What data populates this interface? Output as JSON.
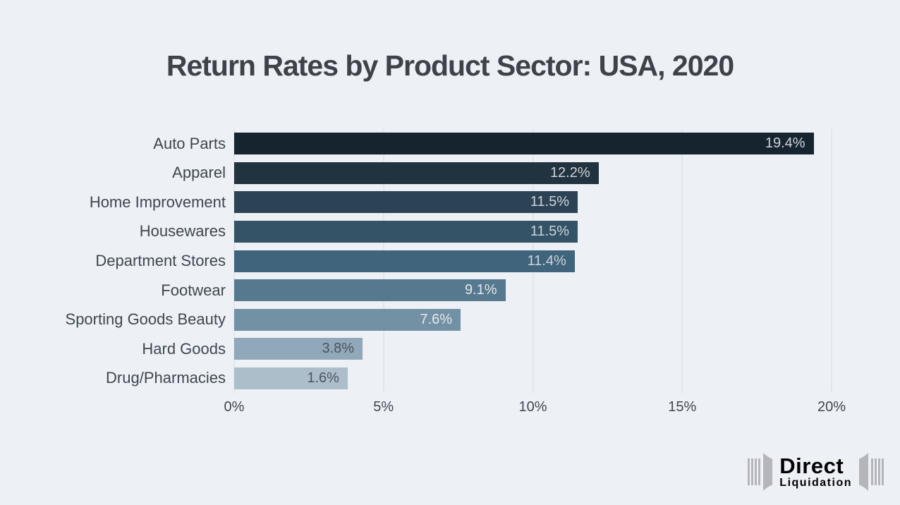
{
  "page": {
    "background_color": "#edf1f5"
  },
  "title": "Return Rates by Product Sector: USA, 2020",
  "chart_data": {
    "type": "bar",
    "orientation": "horizontal",
    "title": "Return Rates by Product Sector: USA, 2020",
    "xlabel": "",
    "ylabel": "",
    "xlim": [
      0,
      20
    ],
    "grid": "vertical-only",
    "gridline_color": "#d7dce1",
    "x_ticks": [
      {
        "label": "0%",
        "pct": 0
      },
      {
        "label": "5%",
        "pct": 25
      },
      {
        "label": "10%",
        "pct": 50
      },
      {
        "label": "15%",
        "pct": 75
      },
      {
        "label": "20%",
        "pct": 100
      }
    ],
    "categories": [
      "Auto Parts",
      "Apparel",
      "Home Improvement",
      "Housewares",
      "Department Stores",
      "Footwear",
      "Sporting Goods Beauty",
      "Hard Goods",
      "Drug/Pharmacies"
    ],
    "values": [
      19.4,
      12.2,
      11.5,
      11.5,
      11.4,
      9.1,
      7.6,
      3.8,
      1.6
    ],
    "value_labels": [
      "19.4%",
      "12.2%",
      "11.5%",
      "11.5%",
      "11.4%",
      "9.1%",
      "7.6%",
      "3.8%",
      "1.6%"
    ],
    "bar_colors": [
      "#16242f",
      "#21333f",
      "#2b4354",
      "#355367",
      "#3f647b",
      "#567990",
      "#7391a5",
      "#90a8b9",
      "#adbecb"
    ],
    "value_label_colors": [
      "#cdd3d8",
      "#cdd3d8",
      "#cdd3d8",
      "#cdd3d8",
      "#cdd3d8",
      "#e4e8eb",
      "#e4e8eb",
      "#4a545e",
      "#4a545e"
    ],
    "bar_display_pct": [
      97.0,
      61.0,
      57.5,
      57.5,
      57.0,
      45.4,
      37.9,
      21.5,
      19.0
    ],
    "note": "bar_display_pct is the drawn bar length as % of the 0-20% axis; the two smallest bars are drawn longer than true scale in the source image"
  },
  "branding": {
    "logo_primary": "Direct",
    "logo_secondary": "Liquidation",
    "logo_color": "#b5b6ba"
  }
}
